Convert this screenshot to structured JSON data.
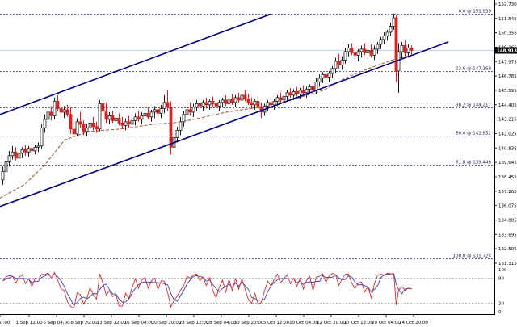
{
  "chart_data": {
    "type": "candlestick",
    "symbol": "",
    "price_axis": {
      "min": 131.315,
      "max": 152.73,
      "ticks": [
        "152.730",
        "151.545",
        "150.355",
        "149.165",
        "147.975",
        "146.785",
        "145.595",
        "144.405",
        "143.215",
        "142.025",
        "140.835",
        "139.645",
        "138.455",
        "137.265",
        "136.075",
        "134.885",
        "133.695",
        "132.505",
        "131.315"
      ]
    },
    "current_price": "148.913",
    "time_axis": {
      "labels": [
        "0:00",
        "1 Sep 12:00",
        "6 Sep 04:00",
        "8 Sep 20:00",
        "13 Sep 12:00",
        "16 Sep 04:00",
        "20 Sep 20:00",
        "23 Sep 12:00",
        "28 Sep 04:00",
        "30 Sep 20:00",
        "5 Oct 12:00",
        "10 Oct 04:00",
        "12 Oct 20:00",
        "17 Oct 12:00",
        "20 Oct 04:00",
        "24 Oct 20:00"
      ]
    },
    "fibonacci_levels": [
      {
        "label": "0.0 @ 151.939",
        "price": 151.939
      },
      {
        "label": "23.6 @ 147.168",
        "price": 147.168
      },
      {
        "label": "38.2 @ 144.217",
        "price": 144.217
      },
      {
        "label": "50.0 @ 141.832",
        "price": 141.832
      },
      {
        "label": "61.8 @ 139.446",
        "price": 139.446
      },
      {
        "label": "100.0 @ 131.724",
        "price": 131.724
      }
    ],
    "channel_lines": [
      {
        "name": "upper",
        "from": [
          0,
          143.6
        ],
        "to": [
          335,
          151.9
        ]
      },
      {
        "name": "lower",
        "from": [
          0,
          136.0
        ],
        "to": [
          555,
          149.6
        ]
      }
    ],
    "candles": [
      {
        "x": 3,
        "o": 138.2,
        "h": 139.3,
        "l": 137.8,
        "c": 138.9
      },
      {
        "x": 7,
        "o": 138.9,
        "h": 140.1,
        "l": 138.5,
        "c": 139.7
      },
      {
        "x": 11,
        "o": 139.7,
        "h": 140.6,
        "l": 139.3,
        "c": 140.2
      },
      {
        "x": 15,
        "o": 140.2,
        "h": 141.0,
        "l": 139.9,
        "c": 140.5
      },
      {
        "x": 19,
        "o": 140.5,
        "h": 140.9,
        "l": 139.8,
        "c": 140.0
      },
      {
        "x": 23,
        "o": 140.0,
        "h": 140.8,
        "l": 139.7,
        "c": 140.4
      },
      {
        "x": 27,
        "o": 140.4,
        "h": 140.9,
        "l": 140.0,
        "c": 140.7
      },
      {
        "x": 31,
        "o": 140.7,
        "h": 141.1,
        "l": 140.2,
        "c": 140.5
      },
      {
        "x": 35,
        "o": 140.5,
        "h": 141.0,
        "l": 140.1,
        "c": 140.8
      },
      {
        "x": 39,
        "o": 140.8,
        "h": 141.2,
        "l": 140.3,
        "c": 140.6
      },
      {
        "x": 43,
        "o": 140.6,
        "h": 141.1,
        "l": 140.3,
        "c": 140.9
      },
      {
        "x": 47,
        "o": 140.9,
        "h": 141.3,
        "l": 140.5,
        "c": 141.0
      },
      {
        "x": 51,
        "o": 141.0,
        "h": 142.8,
        "l": 140.8,
        "c": 142.5
      },
      {
        "x": 55,
        "o": 142.5,
        "h": 143.6,
        "l": 142.1,
        "c": 143.2
      },
      {
        "x": 59,
        "o": 143.2,
        "h": 144.1,
        "l": 142.8,
        "c": 143.8
      },
      {
        "x": 63,
        "o": 143.8,
        "h": 144.3,
        "l": 143.1,
        "c": 143.5
      },
      {
        "x": 67,
        "o": 143.5,
        "h": 145.0,
        "l": 143.2,
        "c": 144.7
      },
      {
        "x": 71,
        "o": 144.7,
        "h": 145.2,
        "l": 143.9,
        "c": 144.1
      },
      {
        "x": 75,
        "o": 144.1,
        "h": 144.6,
        "l": 143.5,
        "c": 143.8
      },
      {
        "x": 79,
        "o": 143.8,
        "h": 144.3,
        "l": 143.3,
        "c": 144.0
      },
      {
        "x": 83,
        "o": 144.0,
        "h": 144.4,
        "l": 143.4,
        "c": 143.6
      },
      {
        "x": 87,
        "o": 143.6,
        "h": 144.2,
        "l": 142.0,
        "c": 142.4
      },
      {
        "x": 91,
        "o": 142.4,
        "h": 143.0,
        "l": 141.7,
        "c": 142.0
      },
      {
        "x": 95,
        "o": 142.0,
        "h": 143.3,
        "l": 141.8,
        "c": 143.0
      },
      {
        "x": 99,
        "o": 143.0,
        "h": 143.8,
        "l": 142.5,
        "c": 142.8
      },
      {
        "x": 103,
        "o": 142.8,
        "h": 143.1,
        "l": 141.9,
        "c": 142.2
      },
      {
        "x": 107,
        "o": 142.2,
        "h": 142.8,
        "l": 141.8,
        "c": 142.5
      },
      {
        "x": 111,
        "o": 142.5,
        "h": 143.2,
        "l": 142.1,
        "c": 142.9
      },
      {
        "x": 115,
        "o": 142.9,
        "h": 143.4,
        "l": 142.3,
        "c": 142.6
      },
      {
        "x": 119,
        "o": 142.6,
        "h": 143.0,
        "l": 142.1,
        "c": 142.4
      },
      {
        "x": 123,
        "o": 142.4,
        "h": 144.8,
        "l": 142.2,
        "c": 144.5
      },
      {
        "x": 127,
        "o": 144.5,
        "h": 144.9,
        "l": 143.6,
        "c": 143.9
      },
      {
        "x": 131,
        "o": 143.9,
        "h": 144.6,
        "l": 142.9,
        "c": 143.2
      },
      {
        "x": 135,
        "o": 143.2,
        "h": 143.8,
        "l": 142.8,
        "c": 143.5
      },
      {
        "x": 139,
        "o": 143.5,
        "h": 143.9,
        "l": 142.9,
        "c": 143.1
      },
      {
        "x": 143,
        "o": 143.1,
        "h": 143.6,
        "l": 142.6,
        "c": 143.3
      },
      {
        "x": 147,
        "o": 143.3,
        "h": 143.7,
        "l": 142.7,
        "c": 142.9
      },
      {
        "x": 151,
        "o": 142.9,
        "h": 143.4,
        "l": 142.4,
        "c": 142.7
      },
      {
        "x": 155,
        "o": 142.7,
        "h": 143.3,
        "l": 142.3,
        "c": 143.0
      },
      {
        "x": 159,
        "o": 143.0,
        "h": 143.5,
        "l": 142.5,
        "c": 142.8
      },
      {
        "x": 163,
        "o": 142.8,
        "h": 143.4,
        "l": 142.4,
        "c": 143.1
      },
      {
        "x": 167,
        "o": 143.1,
        "h": 143.7,
        "l": 142.7,
        "c": 143.4
      },
      {
        "x": 171,
        "o": 143.4,
        "h": 143.9,
        "l": 143.0,
        "c": 143.2
      },
      {
        "x": 175,
        "o": 143.2,
        "h": 143.8,
        "l": 142.8,
        "c": 143.5
      },
      {
        "x": 179,
        "o": 143.5,
        "h": 144.0,
        "l": 143.1,
        "c": 143.7
      },
      {
        "x": 183,
        "o": 143.7,
        "h": 144.2,
        "l": 143.2,
        "c": 143.4
      },
      {
        "x": 187,
        "o": 143.4,
        "h": 144.0,
        "l": 143.0,
        "c": 143.8
      },
      {
        "x": 191,
        "o": 143.8,
        "h": 144.3,
        "l": 143.3,
        "c": 144.0
      },
      {
        "x": 195,
        "o": 144.0,
        "h": 144.5,
        "l": 143.5,
        "c": 143.7
      },
      {
        "x": 199,
        "o": 143.7,
        "h": 144.4,
        "l": 143.3,
        "c": 144.1
      },
      {
        "x": 203,
        "o": 144.1,
        "h": 145.2,
        "l": 143.7,
        "c": 144.6
      },
      {
        "x": 207,
        "o": 144.6,
        "h": 145.6,
        "l": 143.9,
        "c": 144.2
      },
      {
        "x": 211,
        "o": 144.2,
        "h": 144.7,
        "l": 140.3,
        "c": 140.9
      },
      {
        "x": 215,
        "o": 140.9,
        "h": 142.0,
        "l": 140.6,
        "c": 141.7
      },
      {
        "x": 219,
        "o": 141.7,
        "h": 142.6,
        "l": 141.3,
        "c": 142.3
      },
      {
        "x": 223,
        "o": 142.3,
        "h": 143.4,
        "l": 141.9,
        "c": 143.0
      },
      {
        "x": 227,
        "o": 143.0,
        "h": 143.9,
        "l": 142.6,
        "c": 143.6
      },
      {
        "x": 231,
        "o": 143.6,
        "h": 144.3,
        "l": 143.2,
        "c": 144.0
      },
      {
        "x": 235,
        "o": 144.0,
        "h": 144.6,
        "l": 143.5,
        "c": 143.8
      },
      {
        "x": 239,
        "o": 143.8,
        "h": 144.5,
        "l": 143.4,
        "c": 144.2
      },
      {
        "x": 243,
        "o": 144.2,
        "h": 144.8,
        "l": 143.9,
        "c": 144.5
      },
      {
        "x": 247,
        "o": 144.5,
        "h": 144.9,
        "l": 144.0,
        "c": 144.3
      },
      {
        "x": 251,
        "o": 144.3,
        "h": 144.8,
        "l": 143.9,
        "c": 144.6
      },
      {
        "x": 255,
        "o": 144.6,
        "h": 145.0,
        "l": 144.1,
        "c": 144.4
      },
      {
        "x": 259,
        "o": 144.4,
        "h": 144.9,
        "l": 144.0,
        "c": 144.7
      },
      {
        "x": 263,
        "o": 144.7,
        "h": 145.1,
        "l": 144.2,
        "c": 144.5
      },
      {
        "x": 267,
        "o": 144.5,
        "h": 145.0,
        "l": 144.0,
        "c": 144.3
      },
      {
        "x": 271,
        "o": 144.3,
        "h": 144.8,
        "l": 143.9,
        "c": 144.6
      },
      {
        "x": 275,
        "o": 144.6,
        "h": 145.0,
        "l": 144.2,
        "c": 144.8
      },
      {
        "x": 279,
        "o": 144.8,
        "h": 145.2,
        "l": 144.3,
        "c": 144.5
      },
      {
        "x": 283,
        "o": 144.5,
        "h": 145.1,
        "l": 144.1,
        "c": 144.9
      },
      {
        "x": 287,
        "o": 144.9,
        "h": 145.3,
        "l": 144.4,
        "c": 144.6
      },
      {
        "x": 291,
        "o": 144.6,
        "h": 145.2,
        "l": 144.2,
        "c": 145.0
      },
      {
        "x": 295,
        "o": 145.0,
        "h": 145.4,
        "l": 144.6,
        "c": 144.8
      },
      {
        "x": 299,
        "o": 144.8,
        "h": 145.5,
        "l": 144.5,
        "c": 145.2
      },
      {
        "x": 303,
        "o": 145.2,
        "h": 145.6,
        "l": 144.7,
        "c": 144.9
      },
      {
        "x": 307,
        "o": 144.9,
        "h": 145.3,
        "l": 144.4,
        "c": 144.6
      },
      {
        "x": 311,
        "o": 144.6,
        "h": 145.0,
        "l": 144.1,
        "c": 144.4
      },
      {
        "x": 315,
        "o": 144.4,
        "h": 144.9,
        "l": 144.0,
        "c": 144.7
      },
      {
        "x": 319,
        "o": 144.7,
        "h": 145.1,
        "l": 143.9,
        "c": 144.2
      },
      {
        "x": 323,
        "o": 144.2,
        "h": 144.6,
        "l": 143.3,
        "c": 143.8
      },
      {
        "x": 327,
        "o": 143.8,
        "h": 144.5,
        "l": 143.5,
        "c": 144.3
      },
      {
        "x": 331,
        "o": 144.3,
        "h": 144.8,
        "l": 143.9,
        "c": 144.6
      },
      {
        "x": 335,
        "o": 144.6,
        "h": 145.0,
        "l": 144.1,
        "c": 144.4
      },
      {
        "x": 339,
        "o": 144.4,
        "h": 144.9,
        "l": 144.0,
        "c": 144.7
      },
      {
        "x": 343,
        "o": 144.7,
        "h": 145.2,
        "l": 144.3,
        "c": 145.0
      },
      {
        "x": 347,
        "o": 145.0,
        "h": 145.4,
        "l": 144.5,
        "c": 144.8
      },
      {
        "x": 351,
        "o": 144.8,
        "h": 145.3,
        "l": 144.4,
        "c": 145.1
      },
      {
        "x": 355,
        "o": 145.1,
        "h": 145.6,
        "l": 144.7,
        "c": 145.4
      },
      {
        "x": 359,
        "o": 145.4,
        "h": 145.8,
        "l": 145.0,
        "c": 145.2
      },
      {
        "x": 363,
        "o": 145.2,
        "h": 145.7,
        "l": 144.8,
        "c": 145.5
      },
      {
        "x": 367,
        "o": 145.5,
        "h": 145.9,
        "l": 145.1,
        "c": 145.3
      },
      {
        "x": 371,
        "o": 145.3,
        "h": 145.8,
        "l": 144.9,
        "c": 145.6
      },
      {
        "x": 375,
        "o": 145.6,
        "h": 146.0,
        "l": 145.2,
        "c": 145.4
      },
      {
        "x": 379,
        "o": 145.4,
        "h": 145.9,
        "l": 145.0,
        "c": 145.7
      },
      {
        "x": 383,
        "o": 145.7,
        "h": 146.1,
        "l": 145.3,
        "c": 145.9
      },
      {
        "x": 387,
        "o": 145.9,
        "h": 146.3,
        "l": 145.4,
        "c": 145.6
      },
      {
        "x": 391,
        "o": 145.6,
        "h": 146.6,
        "l": 145.3,
        "c": 146.3
      },
      {
        "x": 395,
        "o": 146.3,
        "h": 146.9,
        "l": 145.9,
        "c": 146.6
      },
      {
        "x": 399,
        "o": 146.6,
        "h": 147.1,
        "l": 146.2,
        "c": 146.9
      },
      {
        "x": 403,
        "o": 146.9,
        "h": 147.3,
        "l": 146.4,
        "c": 146.7
      },
      {
        "x": 407,
        "o": 146.7,
        "h": 147.2,
        "l": 146.3,
        "c": 147.0
      },
      {
        "x": 411,
        "o": 147.0,
        "h": 147.6,
        "l": 146.6,
        "c": 147.4
      },
      {
        "x": 415,
        "o": 147.4,
        "h": 148.3,
        "l": 147.0,
        "c": 148.0
      },
      {
        "x": 419,
        "o": 148.0,
        "h": 148.6,
        "l": 147.4,
        "c": 147.7
      },
      {
        "x": 423,
        "o": 147.7,
        "h": 148.4,
        "l": 147.3,
        "c": 148.1
      },
      {
        "x": 427,
        "o": 148.1,
        "h": 149.1,
        "l": 147.8,
        "c": 148.8
      },
      {
        "x": 431,
        "o": 148.8,
        "h": 149.4,
        "l": 148.4,
        "c": 149.1
      },
      {
        "x": 435,
        "o": 149.1,
        "h": 149.5,
        "l": 148.5,
        "c": 148.7
      },
      {
        "x": 439,
        "o": 148.7,
        "h": 149.2,
        "l": 148.2,
        "c": 148.5
      },
      {
        "x": 443,
        "o": 148.5,
        "h": 149.0,
        "l": 148.0,
        "c": 148.8
      },
      {
        "x": 447,
        "o": 148.8,
        "h": 149.3,
        "l": 148.3,
        "c": 149.0
      },
      {
        "x": 451,
        "o": 149.0,
        "h": 149.5,
        "l": 148.5,
        "c": 148.7
      },
      {
        "x": 455,
        "o": 148.7,
        "h": 149.2,
        "l": 148.2,
        "c": 148.9
      },
      {
        "x": 459,
        "o": 148.9,
        "h": 149.4,
        "l": 148.3,
        "c": 148.5
      },
      {
        "x": 463,
        "o": 148.5,
        "h": 149.3,
        "l": 148.1,
        "c": 149.0
      },
      {
        "x": 467,
        "o": 149.0,
        "h": 149.6,
        "l": 148.6,
        "c": 149.4
      },
      {
        "x": 471,
        "o": 149.4,
        "h": 150.0,
        "l": 149.0,
        "c": 149.8
      },
      {
        "x": 475,
        "o": 149.8,
        "h": 150.4,
        "l": 149.4,
        "c": 150.1
      },
      {
        "x": 479,
        "o": 150.1,
        "h": 150.6,
        "l": 149.7,
        "c": 150.4
      },
      {
        "x": 483,
        "o": 150.4,
        "h": 151.2,
        "l": 150.1,
        "c": 150.9
      },
      {
        "x": 487,
        "o": 150.9,
        "h": 151.94,
        "l": 150.6,
        "c": 151.6
      },
      {
        "x": 490,
        "o": 151.6,
        "h": 151.8,
        "l": 146.3,
        "c": 147.2
      },
      {
        "x": 493,
        "o": 147.2,
        "h": 149.5,
        "l": 145.4,
        "c": 148.8
      },
      {
        "x": 497,
        "o": 148.8,
        "h": 149.6,
        "l": 148.2,
        "c": 149.3
      },
      {
        "x": 501,
        "o": 149.3,
        "h": 149.7,
        "l": 148.4,
        "c": 148.7
      },
      {
        "x": 505,
        "o": 148.7,
        "h": 149.4,
        "l": 148.3,
        "c": 149.1
      },
      {
        "x": 509,
        "o": 149.1,
        "h": 149.3,
        "l": 148.5,
        "c": 148.9
      }
    ],
    "moving_average": [
      [
        0,
        136.7
      ],
      [
        30,
        137.8
      ],
      [
        55,
        139.4
      ],
      [
        80,
        141.5
      ],
      [
        110,
        142.2
      ],
      [
        150,
        142.4
      ],
      [
        190,
        142.8
      ],
      [
        215,
        142.9
      ],
      [
        240,
        143.2
      ],
      [
        280,
        143.8
      ],
      [
        320,
        144.2
      ],
      [
        360,
        144.8
      ],
      [
        400,
        145.6
      ],
      [
        430,
        146.7
      ],
      [
        460,
        147.5
      ],
      [
        490,
        148.2
      ],
      [
        510,
        148.5
      ]
    ],
    "stochastic": {
      "range": [
        0,
        100
      ],
      "levels": [
        80,
        20
      ],
      "tick_labels": [
        "100",
        "80",
        "20",
        "0"
      ],
      "k_color": "#d03030",
      "d_color": "#3040c0"
    },
    "colors": {
      "up": "#1a1a1a",
      "down": "#e02020",
      "channel": "#000080",
      "fib": "#2a2a8a",
      "ma": "#a0522d",
      "current": "#a8c8e8"
    }
  }
}
